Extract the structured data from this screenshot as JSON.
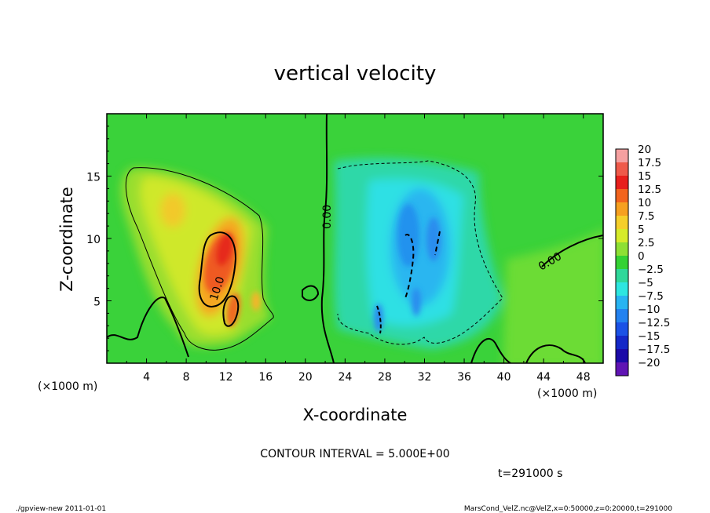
{
  "chart_data": {
    "type": "heatmap",
    "title": "vertical velocity",
    "xlabel": "X-coordinate",
    "ylabel": "Z-coordinate",
    "x_unit": "(×1000 m)",
    "y_unit": "(×1000 m)",
    "xlim": [
      0,
      50
    ],
    "ylim": [
      0,
      20
    ],
    "x_ticks": [
      "4",
      "8",
      "12",
      "16",
      "20",
      "24",
      "28",
      "32",
      "36",
      "40",
      "44",
      "48"
    ],
    "x_tick_values": [
      4,
      8,
      12,
      16,
      20,
      24,
      28,
      32,
      36,
      40,
      44,
      48
    ],
    "y_ticks": [
      "5",
      "10",
      "15"
    ],
    "y_tick_values": [
      5,
      10,
      15
    ],
    "colorbar_labels": [
      "20",
      "17.5",
      "15",
      "12.5",
      "10",
      "7.5",
      "5",
      "2.5",
      "0",
      "−2.5",
      "−5",
      "−7.5",
      "−10",
      "−12.5",
      "−15",
      "−17.5",
      "−20"
    ],
    "colorbar_colors": [
      "#f5a0a0",
      "#ef5a4a",
      "#e8201c",
      "#f2641e",
      "#f6a020",
      "#f5cf2a",
      "#d6eb2a",
      "#8ee034",
      "#34d234",
      "#2fd89a",
      "#2de6e0",
      "#28b4f2",
      "#2382f0",
      "#1b52e6",
      "#1428c8",
      "#1c0aa8",
      "#6014b4"
    ],
    "contour_labels": [
      "0.00",
      "10.0",
      "0.00"
    ],
    "contour_interval": "CONTOUR INTERVAL = 5.000E+00",
    "time_label": "t=291000 s",
    "grid": false
  },
  "footer": {
    "left": "./gpview-new  2011-01-01",
    "right": "MarsCond_VelZ.nc@VelZ,x=0:50000,z=0:20000,t=291000"
  }
}
